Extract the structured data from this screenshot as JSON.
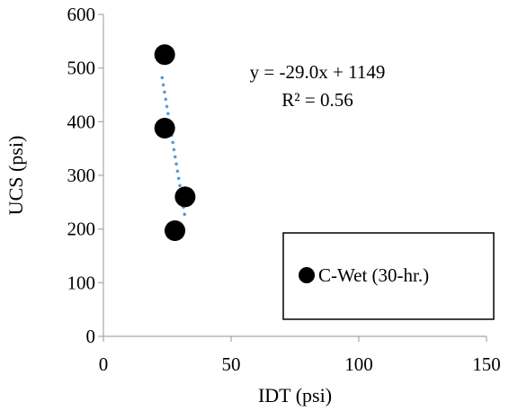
{
  "chart_data": {
    "type": "scatter",
    "title": "",
    "xlabel": "IDT (psi)",
    "ylabel": "UCS (psi)",
    "xlim": [
      0,
      150
    ],
    "ylim": [
      0,
      600
    ],
    "x_ticks": [
      0,
      50,
      100,
      150
    ],
    "y_ticks": [
      0,
      100,
      200,
      300,
      400,
      500,
      600
    ],
    "grid": false,
    "legend_position": "bottom-right",
    "series": [
      {
        "name": "C-Wet (30-hr.)",
        "color": "#000000",
        "marker": "circle",
        "points": [
          {
            "x": 24,
            "y": 525
          },
          {
            "x": 24,
            "y": 388
          },
          {
            "x": 32,
            "y": 260
          },
          {
            "x": 28,
            "y": 197
          }
        ]
      }
    ],
    "trendline": {
      "style": "dotted",
      "color": "#5b9bd5",
      "x_range": [
        23,
        32
      ],
      "slope": -29.0,
      "intercept": 1149,
      "equation_label": "y = -29.0x + 1149",
      "r2_label": "R² = 0.56"
    }
  }
}
